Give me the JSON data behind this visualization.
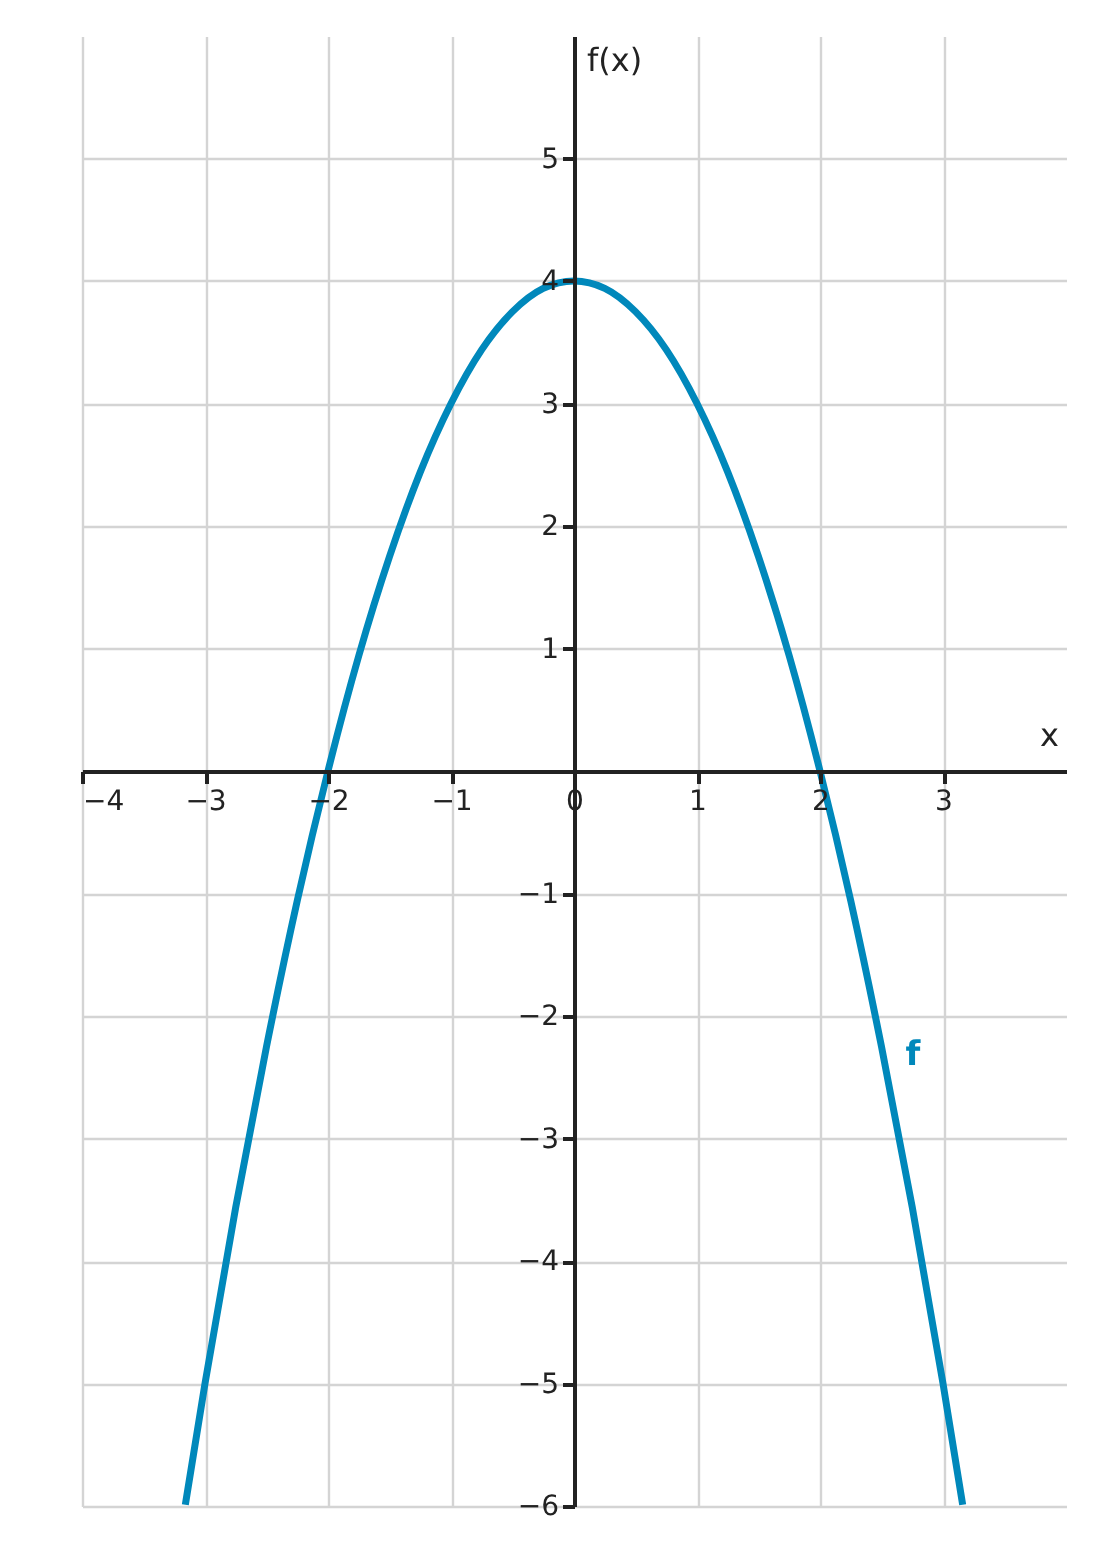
{
  "chart_data": {
    "type": "line",
    "xlabel": "x",
    "ylabel": "f(x)",
    "x": [
      -3.16,
      -3,
      -2.75,
      -2.5,
      -2.25,
      -2,
      -1.75,
      -1.5,
      -1.25,
      -1,
      -0.75,
      -0.5,
      -0.25,
      0,
      0.25,
      0.5,
      0.75,
      1,
      1.25,
      1.5,
      1.75,
      2,
      2.25,
      2.5,
      2.75,
      3,
      3.16
    ],
    "series": [
      {
        "name": "f",
        "color": "#0088bb",
        "values": [
          -5.99,
          -5,
          -3.56,
          -2.25,
          -1.06,
          0,
          0.94,
          1.75,
          2.44,
          3,
          3.44,
          3.75,
          3.94,
          4,
          3.94,
          3.75,
          3.44,
          3,
          2.44,
          1.75,
          0.94,
          0,
          -1.06,
          -2.25,
          -3.56,
          -5,
          -5.99
        ]
      }
    ],
    "xlim": [
      -4,
      4
    ],
    "ylim": [
      -6,
      6
    ],
    "xticks": [
      -4,
      -3,
      -2,
      -1,
      0,
      1,
      2,
      3
    ],
    "yticks": [
      -6,
      -5,
      -4,
      -3,
      -2,
      -1,
      1,
      2,
      3,
      4,
      5
    ],
    "grid": true,
    "legend": false,
    "line_style": "solid",
    "marker": "none"
  }
}
